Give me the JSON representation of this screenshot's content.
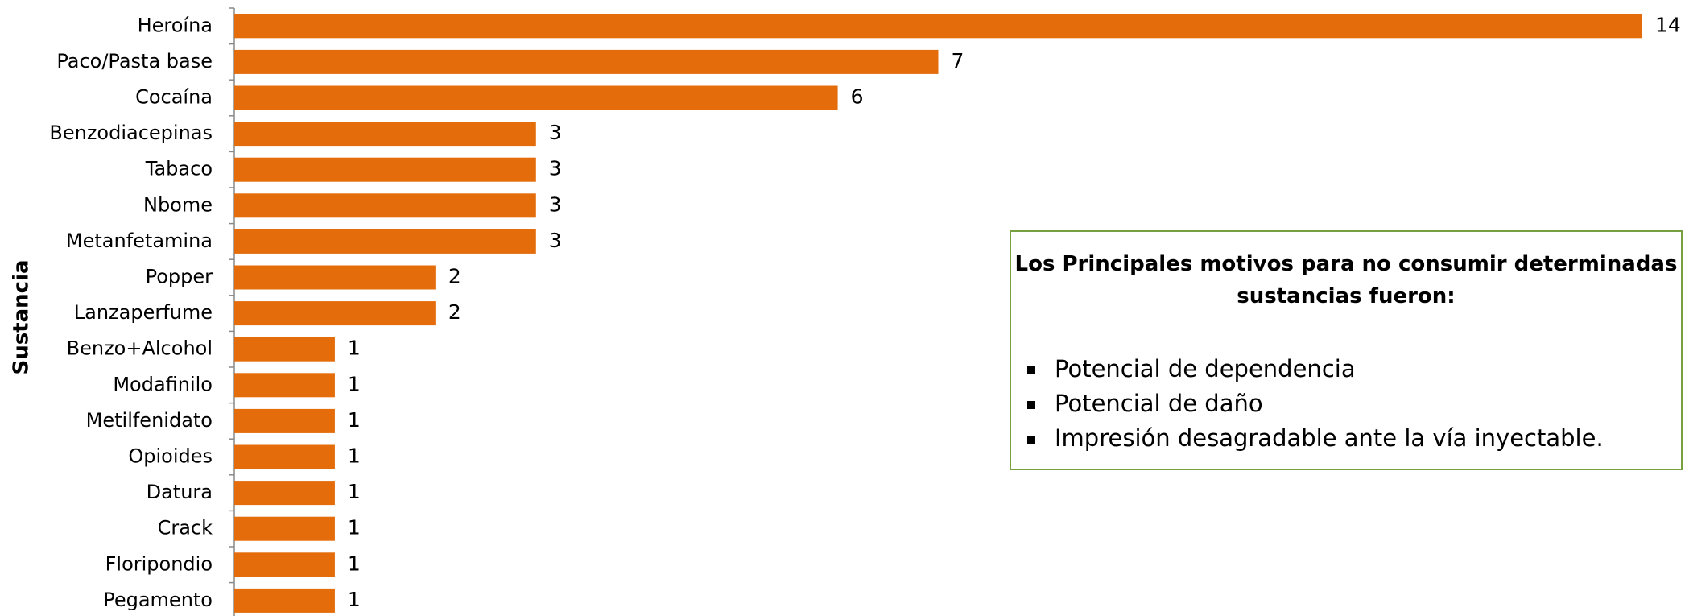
{
  "chart_data": {
    "type": "bar",
    "orientation": "horizontal",
    "y_label": "Sustancia",
    "categories": [
      "Heroína",
      "Paco/Pasta base",
      "Cocaína",
      "Benzodiacepinas",
      "Tabaco",
      "Nbome",
      "Metanfetamina",
      "Popper",
      "Lanzaperfume",
      "Benzo+Alcohol",
      "Modafinilo",
      "Metilfenidato",
      "Opioides",
      "Datura",
      "Crack",
      "Floripondio",
      "Pegamento"
    ],
    "values": [
      14,
      7,
      6,
      3,
      3,
      3,
      3,
      2,
      2,
      1,
      1,
      1,
      1,
      1,
      1,
      1,
      1
    ],
    "color": "#e46c0a",
    "xlim": [
      0,
      14
    ],
    "annotation": {
      "title": "Los Principales motivos para no consumir determinadas sustancias fueron:",
      "items": [
        "Potencial de dependencia",
        "Potencial de daño",
        "Impresión desagradable ante la vía inyectable."
      ]
    }
  }
}
